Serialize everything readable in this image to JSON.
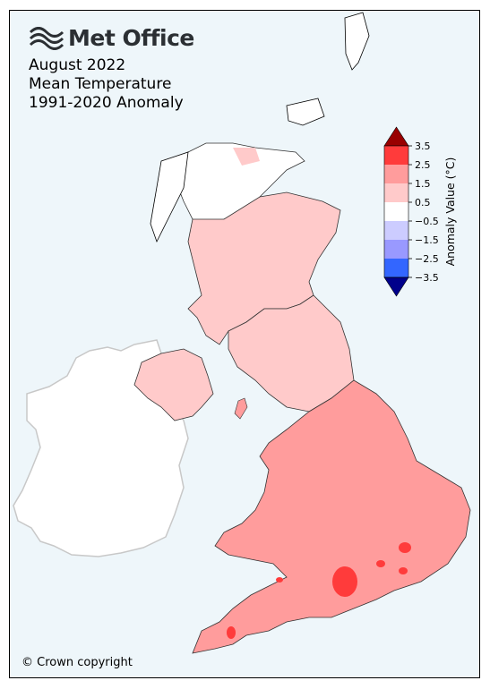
{
  "brand": {
    "name": "Met Office"
  },
  "title_lines": [
    "August 2022",
    "Mean Temperature",
    "1991-2020 Anomaly"
  ],
  "copyright": "© Crown copyright",
  "colorbar": {
    "label": "Anomaly Value (°C)",
    "ticks": [
      "3.5",
      "2.5",
      "1.5",
      "0.5",
      "−0.5",
      "−1.5",
      "−2.5",
      "−3.5"
    ],
    "bins": [
      {
        "range": "2.5 to 3.5",
        "color": "#ff3b3b"
      },
      {
        "range": "1.5 to 2.5",
        "color": "#ff9c9c"
      },
      {
        "range": "0.5 to 1.5",
        "color": "#ffcaca"
      },
      {
        "range": "-0.5 to 0.5",
        "color": "#ffffff"
      },
      {
        "range": "-1.5 to -0.5",
        "color": "#ccccff"
      },
      {
        "range": "-2.5 to -1.5",
        "color": "#9999ff"
      },
      {
        "range": "-3.5 to -2.5",
        "color": "#3366ff"
      }
    ],
    "over_color": "#990000",
    "under_color": "#00008b"
  },
  "colors": {
    "background": "#eef6fa",
    "ireland": "#ffffff",
    "border": "#000000"
  }
}
